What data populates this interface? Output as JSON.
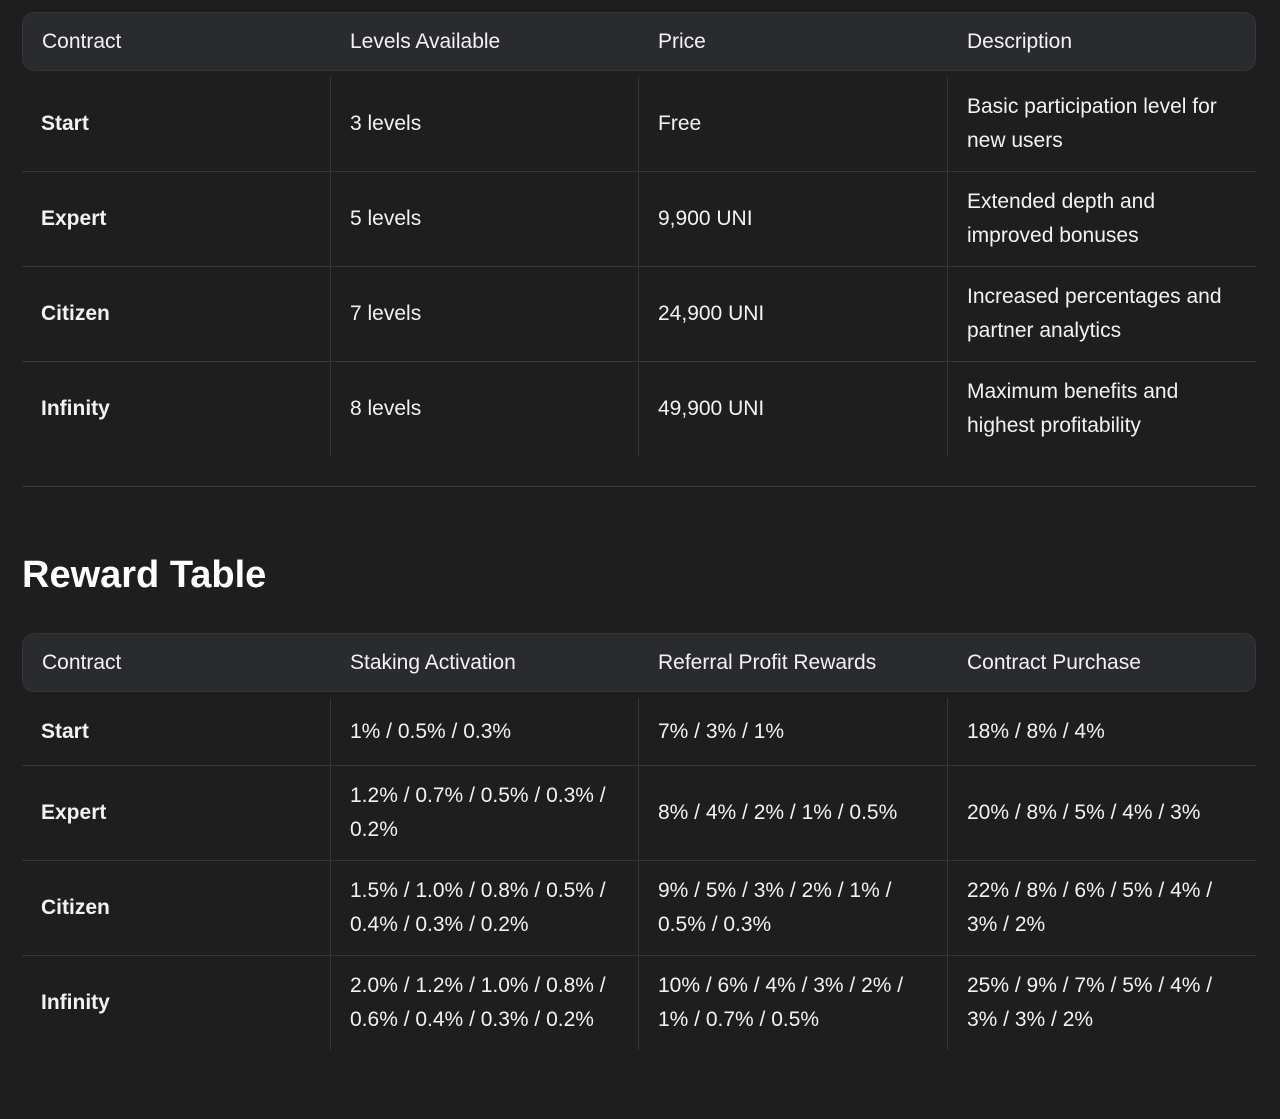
{
  "contracts_table": {
    "headers": [
      "Contract",
      "Levels Available",
      "Price",
      "Description"
    ],
    "rows": [
      {
        "contract": "Start",
        "levels": "3 levels",
        "price": "Free",
        "description": "Basic participation level for new users"
      },
      {
        "contract": "Expert",
        "levels": "5 levels",
        "price": "9,900 UNI",
        "description": "Extended depth and improved bonuses"
      },
      {
        "contract": "Citizen",
        "levels": "7 levels",
        "price": "24,900 UNI",
        "description": "Increased percentages and partner analytics"
      },
      {
        "contract": "Infinity",
        "levels": "8 levels",
        "price": "49,900 UNI",
        "description": "Maximum benefits and highest profitability"
      }
    ]
  },
  "reward_section": {
    "title": "Reward Table",
    "headers": [
      "Contract",
      "Staking Activation",
      "Referral Profit Rewards",
      "Contract Purchase"
    ],
    "rows": [
      {
        "contract": "Start",
        "staking": "1% / 0.5% / 0.3%",
        "referral": "7% / 3% / 1%",
        "purchase": "18% / 8% / 4%"
      },
      {
        "contract": "Expert",
        "staking": "1.2% / 0.7% / 0.5% / 0.3% / 0.2%",
        "referral": "8% / 4% / 2% / 1% / 0.5%",
        "purchase": "20% / 8% / 5% / 4% / 3%"
      },
      {
        "contract": "Citizen",
        "staking": "1.5% / 1.0% / 0.8% / 0.5% / 0.4% / 0.3% / 0.2%",
        "referral": "9% / 5% / 3% / 2% / 1% / 0.5% / 0.3%",
        "purchase": "22% / 8% / 6% / 5% / 4% / 3% / 2%"
      },
      {
        "contract": "Infinity",
        "staking": "2.0% / 1.2% / 1.0% / 0.8% / 0.6% / 0.4% / 0.3% / 0.2%",
        "referral": "10% / 6% / 4% / 3% / 2% / 1% / 0.7% / 0.5%",
        "purchase": "25% / 9% / 7% / 5% / 4% / 3% / 3% / 2%"
      }
    ]
  }
}
